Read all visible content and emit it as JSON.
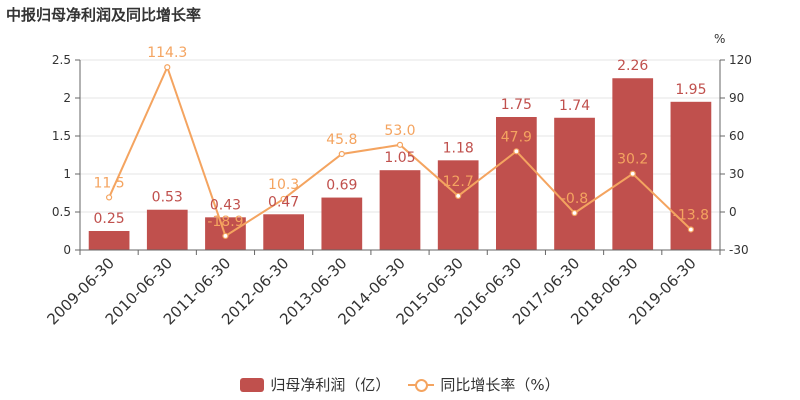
{
  "title": "中报归母净利润及同比增长率",
  "colors": {
    "bar": "#c0504d",
    "line": "#f4a460",
    "barLabel": "#c0504d",
    "lineLabel": "#f4a460"
  },
  "chart_data": {
    "type": "bar",
    "categories": [
      "2009-06-30",
      "2010-06-30",
      "2011-06-30",
      "2012-06-30",
      "2013-06-30",
      "2014-06-30",
      "2015-06-30",
      "2016-06-30",
      "2017-06-30",
      "2018-06-30",
      "2019-06-30"
    ],
    "series": [
      {
        "name": "归母净利润（亿）",
        "type": "bar",
        "axis": "left",
        "values": [
          0.25,
          0.53,
          0.43,
          0.47,
          0.69,
          1.05,
          1.18,
          1.75,
          1.74,
          2.26,
          1.95
        ],
        "labels": [
          "0.25",
          "0.53",
          "0.43",
          "0.47",
          "0.69",
          "1.05",
          "1.18",
          "1.75",
          "1.74",
          "2.26",
          "1.95"
        ]
      },
      {
        "name": "同比增长率（%）",
        "type": "line",
        "axis": "right",
        "values": [
          11.5,
          114.3,
          -18.9,
          10.3,
          45.8,
          53.0,
          12.7,
          47.9,
          -0.8,
          30.2,
          -13.8
        ],
        "labels": [
          "11.5",
          "114.3",
          "-18.9",
          "10.3",
          "45.8",
          "53.0",
          "12.7",
          "47.9",
          "-0.8",
          "30.2",
          "-13.8"
        ]
      }
    ],
    "y_left": {
      "ylim": [
        0,
        2.5
      ],
      "ticks": [
        "0",
        "0.5",
        "1",
        "1.5",
        "2",
        "2.5"
      ],
      "tick_values": [
        0,
        0.5,
        1,
        1.5,
        2,
        2.5
      ]
    },
    "y_right": {
      "unit": "%",
      "ylim": [
        -30,
        120
      ],
      "ticks": [
        "-30",
        "0",
        "30",
        "60",
        "90",
        "120"
      ],
      "tick_values": [
        -30,
        0,
        30,
        60,
        90,
        120
      ]
    },
    "legend": "bottom-center"
  }
}
